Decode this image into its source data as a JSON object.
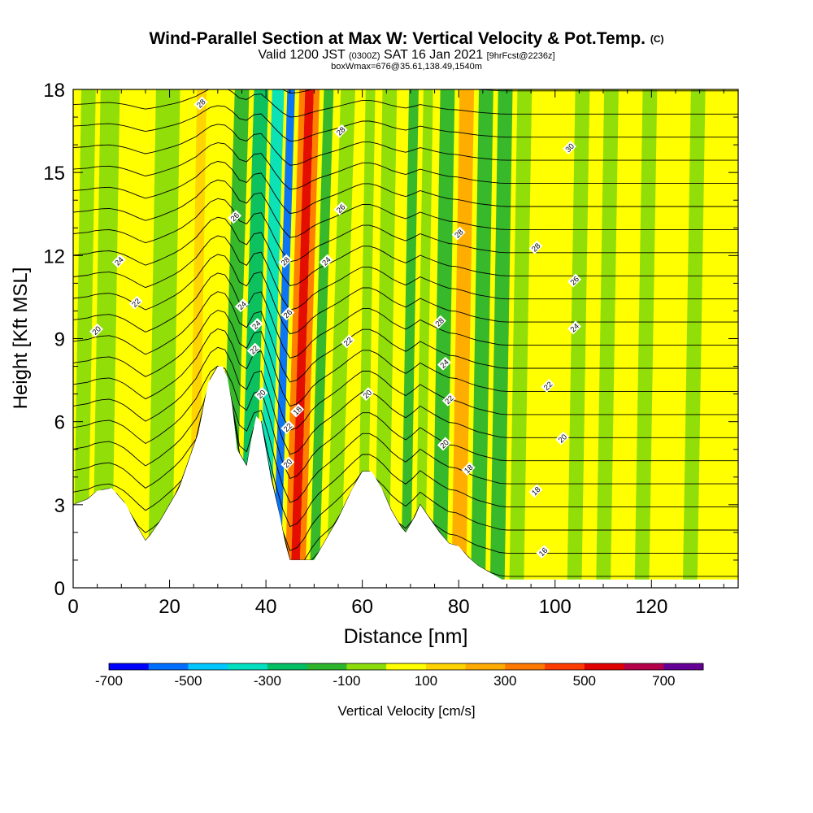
{
  "titles": {
    "main": "Wind-Parallel Section at Max W: Vertical Velocity & Pot.Temp.",
    "copyright": "(C)",
    "valid_prefix": "Valid 1200 JST",
    "valid_utc": "(0300Z)",
    "valid_date": "SAT 16 Jan 2021",
    "forecast": "[9hrFcst@2236z]",
    "boxwmax": "boxWmax=676@35.61,138.49,1540m"
  },
  "chart_data": {
    "type": "heatmap",
    "xlabel": "Distance [nm]",
    "ylabel": "Height [Kft MSL]",
    "xlim": [
      0,
      138
    ],
    "ylim": [
      0,
      18
    ],
    "x_ticks": [
      0,
      20,
      40,
      60,
      80,
      100,
      120
    ],
    "y_ticks": [
      0,
      3,
      6,
      9,
      12,
      15,
      18
    ],
    "terrain_profile": [
      [
        0,
        3.0
      ],
      [
        3,
        3.2
      ],
      [
        5,
        3.5
      ],
      [
        8,
        3.6
      ],
      [
        11,
        3.0
      ],
      [
        13,
        2.3
      ],
      [
        15,
        1.7
      ],
      [
        16,
        1.9
      ],
      [
        18,
        2.4
      ],
      [
        20,
        3.0
      ],
      [
        22,
        3.6
      ],
      [
        24,
        4.6
      ],
      [
        26,
        5.6
      ],
      [
        28,
        7.4
      ],
      [
        30,
        8.0
      ],
      [
        31,
        8.0
      ],
      [
        32,
        7.6
      ],
      [
        33,
        6.6
      ],
      [
        34,
        5.0
      ],
      [
        36,
        4.4
      ],
      [
        37,
        5.4
      ],
      [
        38,
        6.2
      ],
      [
        39,
        6.0
      ],
      [
        40,
        5.0
      ],
      [
        41,
        4.0
      ],
      [
        43,
        2.5
      ],
      [
        44,
        1.6
      ],
      [
        45,
        1.0
      ],
      [
        50,
        1.0
      ],
      [
        52,
        1.6
      ],
      [
        55,
        2.5
      ],
      [
        58,
        3.6
      ],
      [
        60,
        4.2
      ],
      [
        62,
        4.2
      ],
      [
        64,
        3.6
      ],
      [
        66,
        2.8
      ],
      [
        68,
        2.2
      ],
      [
        69,
        2.0
      ],
      [
        71,
        2.6
      ],
      [
        72,
        3.0
      ],
      [
        74,
        2.5
      ],
      [
        76,
        2.0
      ],
      [
        78,
        1.6
      ],
      [
        80,
        1.5
      ],
      [
        82,
        1.1
      ],
      [
        84,
        0.8
      ],
      [
        86,
        0.6
      ],
      [
        88,
        0.4
      ],
      [
        89,
        0.3
      ],
      [
        138,
        0.3
      ]
    ],
    "colorbar": {
      "label": "Vertical Velocity [cm/s]",
      "tick_labels": [
        "-700",
        "-500",
        "-300",
        "-100",
        "100",
        "300",
        "500",
        "700"
      ],
      "colors": [
        "#0000ff",
        "#006eff",
        "#00c8ff",
        "#00e0c0",
        "#00be64",
        "#2db42d",
        "#8cdc0a",
        "#ffff00",
        "#ffd200",
        "#ffaa00",
        "#ff7800",
        "#ff3c00",
        "#e10000",
        "#b4004b",
        "#640096"
      ]
    },
    "velocity_bands": [
      {
        "x": 1.5,
        "w": 3,
        "v": "#8cdc0a"
      },
      {
        "x": 6,
        "w": 4,
        "v": "#8cdc0a"
      },
      {
        "x": 18,
        "w": 5,
        "v": "#8cdc0a"
      },
      {
        "x": 25,
        "w": 2,
        "v": "#ffd200"
      },
      {
        "x": 32,
        "w": 3,
        "v": "#2db42d"
      },
      {
        "x": 36,
        "w": 3,
        "v": "#00be64"
      },
      {
        "x": 39.5,
        "w": 2.5,
        "v": "#00e0c0"
      },
      {
        "x": 42.2,
        "w": 1.6,
        "v": "#006eff"
      },
      {
        "x": 44.5,
        "w": 1.2,
        "v": "#ff7800"
      },
      {
        "x": 46,
        "w": 1.8,
        "v": "#e10000"
      },
      {
        "x": 47.5,
        "w": 1.2,
        "v": "#ff7800"
      },
      {
        "x": 50,
        "w": 2,
        "v": "#2db42d"
      },
      {
        "x": 54,
        "w": 3,
        "v": "#8cdc0a"
      },
      {
        "x": 60,
        "w": 2,
        "v": "#8cdc0a"
      },
      {
        "x": 64,
        "w": 3,
        "v": "#8cdc0a"
      },
      {
        "x": 69,
        "w": 2,
        "v": "#2db42d"
      },
      {
        "x": 72,
        "w": 2,
        "v": "#8cdc0a"
      },
      {
        "x": 76,
        "w": 3,
        "v": "#2db42d"
      },
      {
        "x": 80,
        "w": 3,
        "v": "#ffaa00"
      },
      {
        "x": 84,
        "w": 3,
        "v": "#2db42d"
      },
      {
        "x": 88,
        "w": 3,
        "v": "#2db42d"
      },
      {
        "x": 92,
        "w": 3,
        "v": "#8cdc0a"
      },
      {
        "x": 104,
        "w": 3,
        "v": "#8cdc0a"
      },
      {
        "x": 110,
        "w": 3,
        "v": "#8cdc0a"
      },
      {
        "x": 118,
        "w": 3,
        "v": "#8cdc0a"
      },
      {
        "x": 128,
        "w": 3,
        "v": "#8cdc0a"
      }
    ],
    "isentrope_labels": [
      {
        "x": 26.5,
        "y": 17.5,
        "text": "28"
      },
      {
        "x": 55.5,
        "y": 16.5,
        "text": "28"
      },
      {
        "x": 103,
        "y": 15.9,
        "text": "30"
      },
      {
        "x": 33.5,
        "y": 13.4,
        "text": "26"
      },
      {
        "x": 55.5,
        "y": 13.7,
        "text": "26"
      },
      {
        "x": 80,
        "y": 12.8,
        "text": "28"
      },
      {
        "x": 96,
        "y": 12.3,
        "text": "28"
      },
      {
        "x": 9.5,
        "y": 11.8,
        "text": "24"
      },
      {
        "x": 44,
        "y": 11.8,
        "text": "28"
      },
      {
        "x": 52.5,
        "y": 11.8,
        "text": "24"
      },
      {
        "x": 104,
        "y": 11.1,
        "text": "26"
      },
      {
        "x": 13,
        "y": 10.3,
        "text": "22"
      },
      {
        "x": 35,
        "y": 10.2,
        "text": "24"
      },
      {
        "x": 44.5,
        "y": 9.9,
        "text": "26"
      },
      {
        "x": 38,
        "y": 9.5,
        "text": "24"
      },
      {
        "x": 76,
        "y": 9.6,
        "text": "28"
      },
      {
        "x": 104,
        "y": 9.4,
        "text": "24"
      },
      {
        "x": 4.8,
        "y": 9.3,
        "text": "20"
      },
      {
        "x": 57,
        "y": 8.9,
        "text": "22"
      },
      {
        "x": 37.5,
        "y": 8.6,
        "text": "22"
      },
      {
        "x": 77,
        "y": 8.1,
        "text": "24"
      },
      {
        "x": 98.5,
        "y": 7.3,
        "text": "22"
      },
      {
        "x": 61,
        "y": 7.0,
        "text": "20"
      },
      {
        "x": 39,
        "y": 7.0,
        "text": "20"
      },
      {
        "x": 78,
        "y": 6.8,
        "text": "22"
      },
      {
        "x": 46.5,
        "y": 6.4,
        "text": "18"
      },
      {
        "x": 44.5,
        "y": 5.8,
        "text": "22"
      },
      {
        "x": 101.5,
        "y": 5.4,
        "text": "20"
      },
      {
        "x": 77,
        "y": 5.2,
        "text": "20"
      },
      {
        "x": 44.5,
        "y": 4.5,
        "text": "20"
      },
      {
        "x": 82,
        "y": 4.3,
        "text": "18"
      },
      {
        "x": 96,
        "y": 3.5,
        "text": "18"
      },
      {
        "x": 97.5,
        "y": 1.3,
        "text": "16"
      }
    ]
  }
}
